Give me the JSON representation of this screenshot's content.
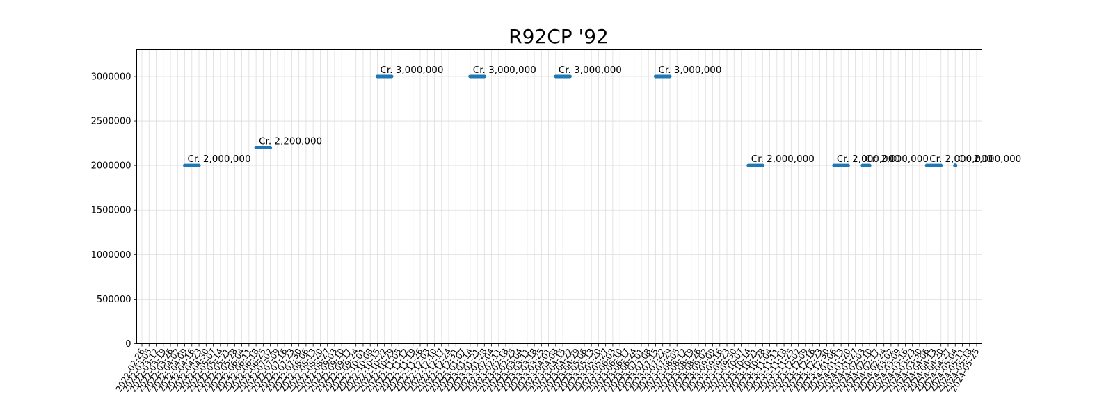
{
  "chart_data": {
    "type": "scatter",
    "title": "R92CP '92",
    "xlabel": "",
    "ylabel": "",
    "ylim": [
      0,
      3300000
    ],
    "yticks": [
      0,
      500000,
      1000000,
      1500000,
      2000000,
      2500000,
      3000000
    ],
    "ytick_labels": [
      "0",
      "500000",
      "1000000",
      "1500000",
      "2000000",
      "2500000",
      "3000000"
    ],
    "x_start": "2022-02-26",
    "x_end": "2024-05-25",
    "xtick_labels": [
      "2022-02-26",
      "2022-03-05",
      "2022-03-12",
      "2022-03-19",
      "2022-03-26",
      "2022-04-02",
      "2022-04-09",
      "2022-04-16",
      "2022-04-23",
      "2022-04-30",
      "2022-05-07",
      "2022-05-14",
      "2022-05-21",
      "2022-05-28",
      "2022-06-04",
      "2022-06-11",
      "2022-06-18",
      "2022-06-25",
      "2022-07-02",
      "2022-07-09",
      "2022-07-16",
      "2022-07-23",
      "2022-07-30",
      "2022-08-06",
      "2022-08-13",
      "2022-08-20",
      "2022-08-27",
      "2022-09-03",
      "2022-09-10",
      "2022-09-17",
      "2022-09-24",
      "2022-10-01",
      "2022-10-08",
      "2022-10-15",
      "2022-10-22",
      "2022-10-29",
      "2022-11-05",
      "2022-11-12",
      "2022-11-19",
      "2022-11-26",
      "2022-12-03",
      "2022-12-10",
      "2022-12-17",
      "2022-12-24",
      "2022-12-31",
      "2023-01-07",
      "2023-01-14",
      "2023-01-21",
      "2023-01-28",
      "2023-02-04",
      "2023-02-11",
      "2023-02-18",
      "2023-02-25",
      "2023-03-04",
      "2023-03-11",
      "2023-03-18",
      "2023-03-25",
      "2023-04-01",
      "2023-04-08",
      "2023-04-15",
      "2023-04-22",
      "2023-04-29",
      "2023-05-06",
      "2023-05-13",
      "2023-05-20",
      "2023-05-27",
      "2023-06-03",
      "2023-06-10",
      "2023-06-17",
      "2023-06-24",
      "2023-07-01",
      "2023-07-08",
      "2023-07-15",
      "2023-07-22",
      "2023-07-29",
      "2023-08-05",
      "2023-08-12",
      "2023-08-19",
      "2023-08-26",
      "2023-09-02",
      "2023-09-09",
      "2023-09-16",
      "2023-09-23",
      "2023-09-30",
      "2023-10-07",
      "2023-10-14",
      "2023-10-21",
      "2023-10-28",
      "2023-11-04",
      "2023-11-11",
      "2023-11-18",
      "2023-11-25",
      "2023-12-02",
      "2023-12-09",
      "2023-12-16",
      "2023-12-23",
      "2023-12-30",
      "2024-01-06",
      "2024-01-13",
      "2024-01-20",
      "2024-01-27",
      "2024-02-03",
      "2024-02-10",
      "2024-02-17",
      "2024-02-24",
      "2024-03-02",
      "2024-03-09",
      "2024-03-16",
      "2024-03-23",
      "2024-03-30",
      "2024-04-06",
      "2024-04-13",
      "2024-04-20",
      "2024-04-27",
      "2024-05-04",
      "2024-05-11",
      "2024-05-18",
      "2024-05-25"
    ],
    "grid": true,
    "legend": "none",
    "color": "#1f77b4",
    "series": [
      {
        "points": [
          {
            "x_start": "2022-04-09",
            "x_end": "2022-04-23",
            "y": 2000000,
            "label": "Cr. 2,000,000"
          },
          {
            "x_start": "2022-06-18",
            "x_end": "2022-07-02",
            "y": 2200000,
            "label": "Cr. 2,200,000"
          },
          {
            "x_start": "2022-10-15",
            "x_end": "2022-10-29",
            "y": 3000000,
            "label": "Cr. 3,000,000"
          },
          {
            "x_start": "2023-01-14",
            "x_end": "2023-01-28",
            "y": 3000000,
            "label": "Cr. 3,000,000"
          },
          {
            "x_start": "2023-04-08",
            "x_end": "2023-04-22",
            "y": 3000000,
            "label": "Cr. 3,000,000"
          },
          {
            "x_start": "2023-07-15",
            "x_end": "2023-07-29",
            "y": 3000000,
            "label": "Cr. 3,000,000"
          },
          {
            "x_start": "2023-10-14",
            "x_end": "2023-10-28",
            "y": 2000000,
            "label": "Cr. 2,000,000"
          },
          {
            "x_start": "2024-01-06",
            "x_end": "2024-01-20",
            "y": 2000000,
            "label": "Cr. 2,000,000"
          },
          {
            "x_start": "2024-02-03",
            "x_end": "2024-02-10",
            "y": 2000000,
            "label": "Cr. 2,000,000"
          },
          {
            "x_start": "2024-04-06",
            "x_end": "2024-04-20",
            "y": 2000000,
            "label": "Cr. 2,000,000"
          },
          {
            "x_start": "2024-05-04",
            "x_end": "2024-05-04",
            "y": 2000000,
            "label": "Cr. 2,000,000"
          }
        ]
      }
    ]
  }
}
